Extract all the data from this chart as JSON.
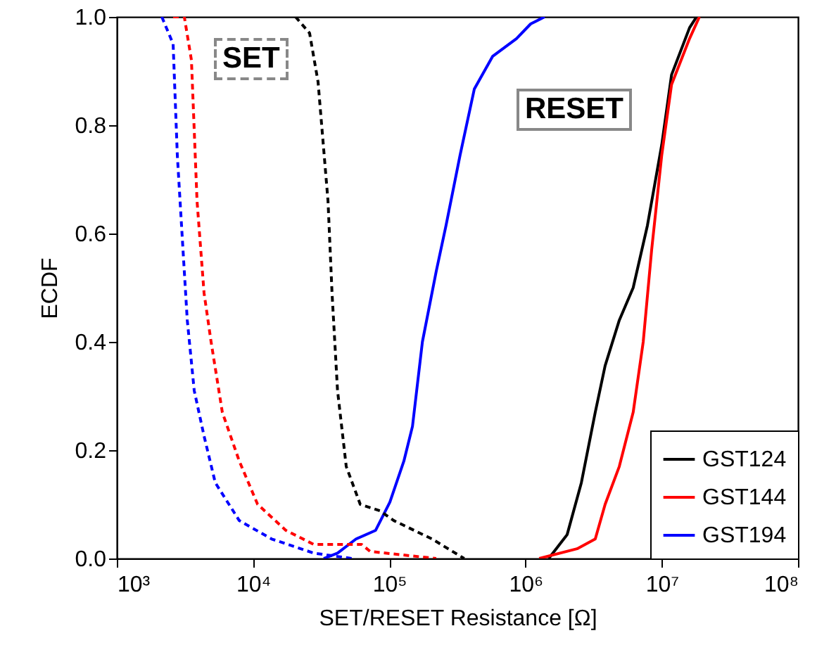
{
  "chart_data": {
    "type": "line",
    "xlabel": "SET/RESET Resistance [Ω]",
    "ylabel": "ECDF",
    "log": "x",
    "xlim": [
      1000,
      100000000
    ],
    "ylim": [
      0,
      1
    ],
    "xticks": [
      {
        "value": 1000,
        "label": "10³"
      },
      {
        "value": 10000,
        "label": "10⁴"
      },
      {
        "value": 100000,
        "label": "10⁵"
      },
      {
        "value": 1000000,
        "label": "10⁶"
      },
      {
        "value": 10000000,
        "label": "10⁷"
      },
      {
        "value": 100000000,
        "label": "10⁸"
      }
    ],
    "yticks": [
      {
        "value": 0,
        "label": "0.0"
      },
      {
        "value": 0.2,
        "label": "0.2"
      },
      {
        "value": 0.4,
        "label": "0.4"
      },
      {
        "value": 0.6,
        "label": "0.6"
      },
      {
        "value": 0.8,
        "label": "0.8"
      },
      {
        "value": 1,
        "label": "1.0"
      }
    ],
    "grid": false,
    "legend": "bottom right",
    "annotations": [
      "SET",
      "RESET"
    ],
    "series": [
      {
        "name": "GST124",
        "color": "#000000",
        "line_style": "solid",
        "x": [
          1480000,
          2020000,
          2570000,
          3250000,
          3840000,
          4880000,
          6170000,
          7850000,
          10000000,
          11800000,
          16000000,
          18000000
        ],
        "values": [
          0,
          0.044,
          0.14,
          0.27,
          0.356,
          0.44,
          0.5,
          0.615,
          0.764,
          0.893,
          0.98,
          1
        ]
      },
      {
        "name": "GST144",
        "color": "#ff0000",
        "line_style": "solid",
        "x": [
          1260000,
          2390000,
          3250000,
          3840000,
          4880000,
          6170000,
          7310000,
          8430000,
          10000000,
          11800000,
          16000000,
          18900000
        ],
        "values": [
          0,
          0.018,
          0.036,
          0.1,
          0.17,
          0.27,
          0.4,
          0.57,
          0.745,
          0.875,
          0.96,
          1
        ]
      },
      {
        "name": "GST194",
        "color": "#0000ff",
        "line_style": "solid",
        "x": [
          33000,
          41700,
          57000,
          79400,
          101000,
          128000,
          148000,
          175000,
          221000,
          261000,
          331000,
          421000,
          573000,
          859000,
          1090000,
          1380000
        ],
        "values": [
          0,
          0.01,
          0.036,
          0.052,
          0.104,
          0.18,
          0.244,
          0.4,
          0.53,
          0.615,
          0.745,
          0.867,
          0.927,
          0.96,
          0.987,
          1
        ]
      },
      {
        "color": "#000000",
        "line_style": "dashed",
        "x": [
          20500,
          26000,
          30000,
          35500,
          38000,
          41700,
          48300,
          61200,
          85500,
          108000,
          206000,
          355000
        ],
        "values": [
          1,
          0.97,
          0.88,
          0.66,
          0.49,
          0.31,
          0.17,
          0.1,
          0.088,
          0.07,
          0.036,
          0
        ]
      },
      {
        "color": "#ff0000",
        "line_style": "dashed",
        "x": [
          2590,
          3130,
          3530,
          3880,
          4370,
          4920,
          5950,
          7920,
          10800,
          17400,
          27900,
          62700,
          72400,
          221000
        ],
        "values": [
          1,
          1,
          0.92,
          0.66,
          0.49,
          0.4,
          0.27,
          0.18,
          0.1,
          0.052,
          0.026,
          0.026,
          0.013,
          0
        ]
      },
      {
        "color": "#0000ff",
        "line_style": "dashed",
        "x": [
          2140,
          2590,
          2780,
          3060,
          3290,
          3700,
          4370,
          5280,
          7920,
          13700,
          27900,
          53100
        ],
        "values": [
          1,
          0.95,
          0.745,
          0.57,
          0.44,
          0.31,
          0.226,
          0.14,
          0.07,
          0.036,
          0.01,
          0
        ]
      }
    ]
  }
}
